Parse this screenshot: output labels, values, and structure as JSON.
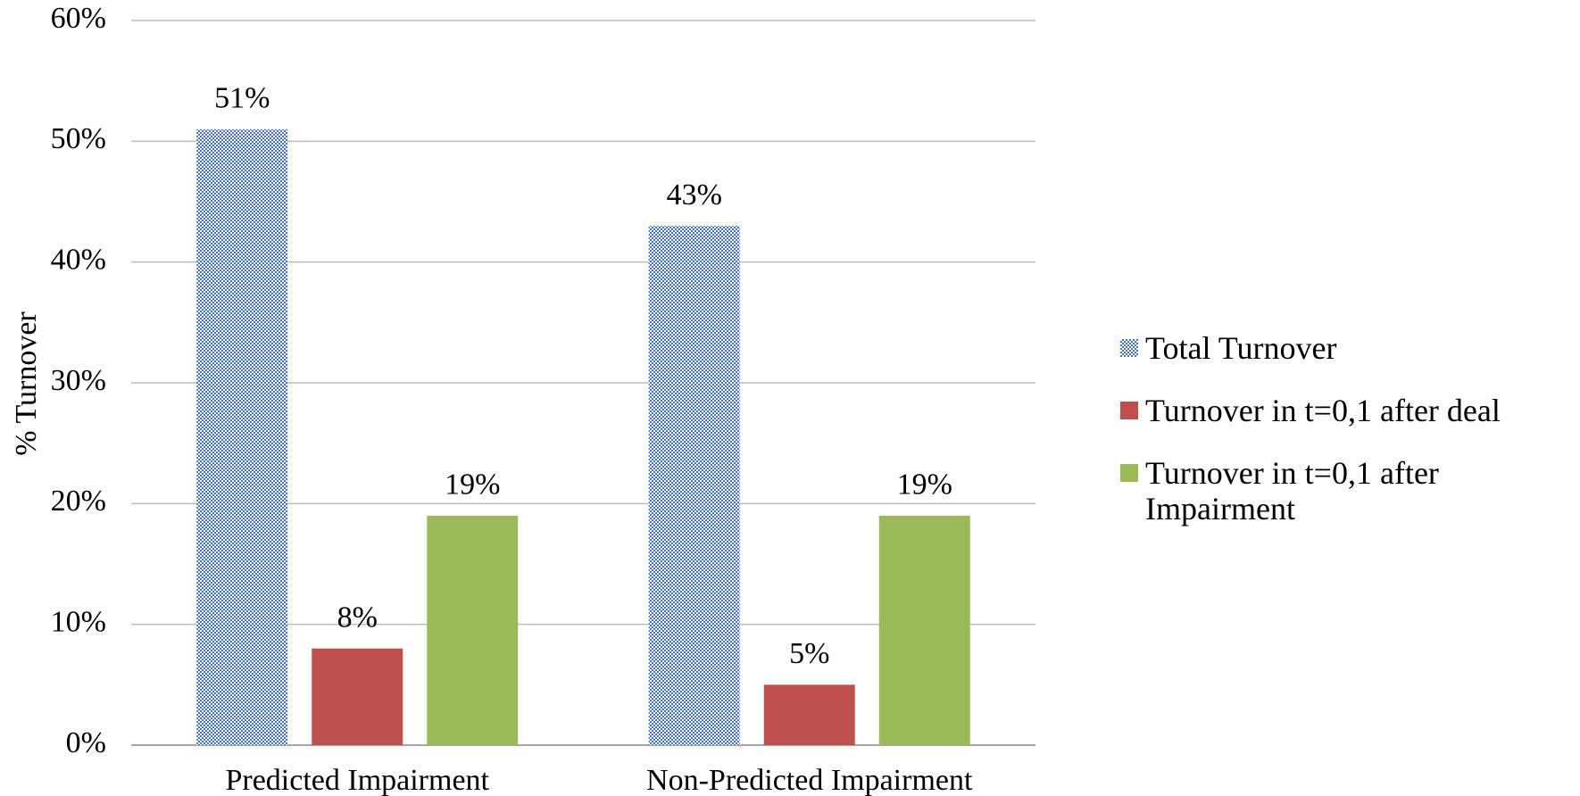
{
  "chart_data": {
    "type": "bar",
    "y_label": "% Turnover",
    "categories": [
      "Predicted Impairment",
      "Non-Predicted Impairment"
    ],
    "series": [
      {
        "name": "Total Turnover",
        "color": "#4472c4",
        "pattern": "checker",
        "values": [
          51,
          43
        ],
        "value_labels": [
          "51%",
          "43%"
        ]
      },
      {
        "name": "Turnover in t=0,1 after deal",
        "color": "#c0504d",
        "values": [
          8,
          5
        ],
        "value_labels": [
          "8%",
          "5%"
        ]
      },
      {
        "name": "Turnover in t=0,1 after Impairment",
        "color": "#9bbb59",
        "values": [
          19,
          19
        ],
        "value_labels": [
          "19%",
          "19%"
        ]
      }
    ],
    "ylim": [
      0,
      60
    ],
    "yticks": [
      {
        "value": 0,
        "label": "0%"
      },
      {
        "value": 10,
        "label": "10%"
      },
      {
        "value": 20,
        "label": "20%"
      },
      {
        "value": 30,
        "label": "30%"
      },
      {
        "value": 40,
        "label": "40%"
      },
      {
        "value": 50,
        "label": "50%"
      },
      {
        "value": 60,
        "label": "60%"
      }
    ],
    "grid": true,
    "legend": "right"
  }
}
